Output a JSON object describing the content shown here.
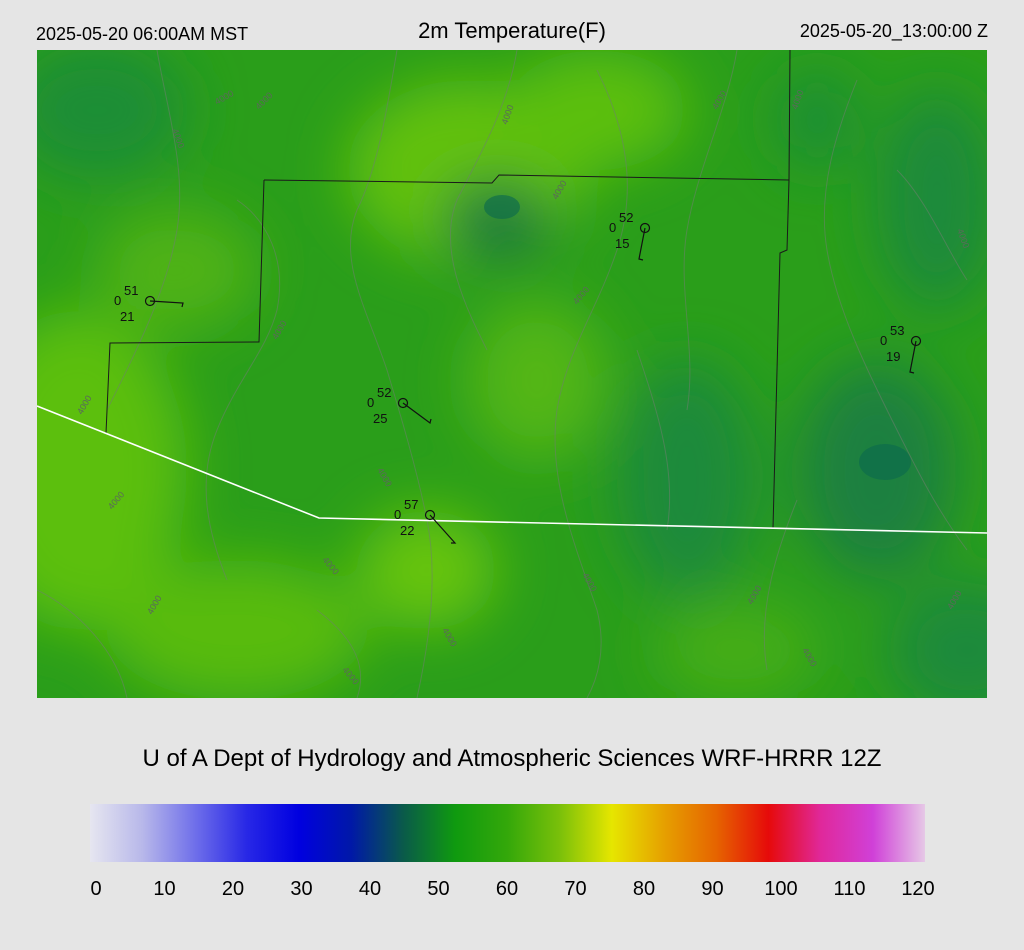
{
  "header": {
    "local_time": "2025-05-20 06:00AM MST",
    "title": "2m Temperature(F)",
    "valid_time": "2025-05-20_13:00:00 Z"
  },
  "credit": "U of A Dept of Hydrology and Atmospheric Sciences WRF-HRRR 12Z",
  "colorbar": {
    "min": 0,
    "max": 120,
    "tick_labels": [
      "0",
      "10",
      "20",
      "30",
      "40",
      "50",
      "60",
      "70",
      "80",
      "90",
      "100",
      "110",
      "120"
    ],
    "colors": [
      "#e6e6f0",
      "#b8b8ea",
      "#7070ea",
      "#2828e6",
      "#0000e0",
      "#0018a8",
      "#0a5a4a",
      "#0f9a0f",
      "#34a80a",
      "#7ac00a",
      "#e6e600",
      "#e6a000",
      "#e66400",
      "#e60a0a",
      "#e0289a",
      "#d040d8",
      "#e6c8e6"
    ]
  },
  "stations": [
    {
      "id": "stn-a",
      "temp": "51",
      "cloud": "0",
      "dewpoint": "21"
    },
    {
      "id": "stn-b",
      "temp": "52",
      "cloud": "0",
      "dewpoint": "15"
    },
    {
      "id": "stn-c",
      "temp": "53",
      "cloud": "0",
      "dewpoint": "19"
    },
    {
      "id": "stn-d",
      "temp": "52",
      "cloud": "0",
      "dewpoint": "25"
    },
    {
      "id": "stn-e",
      "temp": "57",
      "cloud": "0",
      "dewpoint": "22"
    }
  ],
  "contour_label": "4000",
  "colors": {
    "background": "#e5e5e5",
    "field_base": "#2a9e1a",
    "field_warm": "#5cbf10",
    "field_cool": "#1d8a3a",
    "county_line": "#1a1a1a",
    "state_line": "#ffffff",
    "contour": "#6f7f6f"
  }
}
